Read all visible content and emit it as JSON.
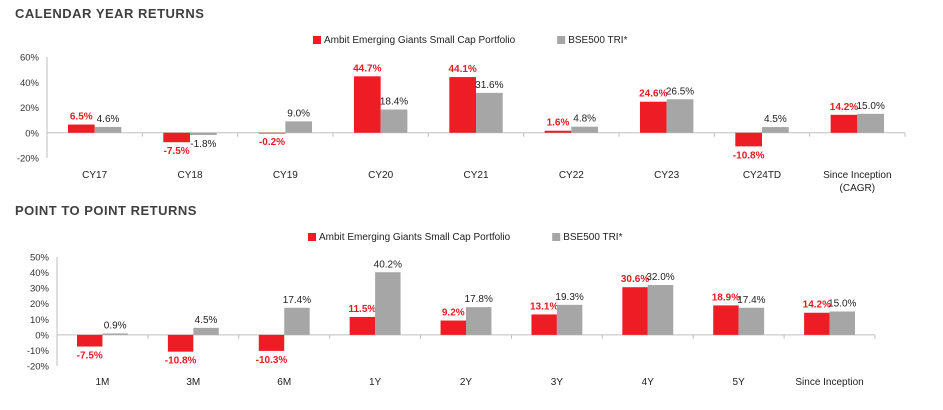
{
  "colors": {
    "portfolio": "#ee1c25",
    "benchmark": "#a6a6a6",
    "axis": "#bfbfbf"
  },
  "chart_data": [
    {
      "type": "bar",
      "title": "CALENDAR YEAR RETURNS",
      "legend": [
        "Ambit Emerging Giants Small Cap Portfolio",
        "BSE500 TRI*"
      ],
      "legend_position": "top-center",
      "categories": [
        "CY17",
        "CY18",
        "CY19",
        "CY20",
        "CY21",
        "CY22",
        "CY23",
        "CY24TD",
        "Since Inception (CAGR)"
      ],
      "series": [
        {
          "name": "Ambit Emerging Giants Small Cap Portfolio",
          "values": [
            6.5,
            -7.5,
            -0.2,
            44.7,
            44.1,
            1.6,
            24.6,
            -10.8,
            14.2
          ],
          "labels": [
            "6.5%",
            "-7.5%",
            "-0.2%",
            "44.7%",
            "44.1%",
            "1.6%",
            "24.6%",
            "-10.8%",
            "14.2%"
          ]
        },
        {
          "name": "BSE500 TRI*",
          "values": [
            4.6,
            -1.8,
            9.0,
            18.4,
            31.6,
            4.8,
            26.5,
            4.5,
            15.0
          ],
          "labels": [
            "4.6%",
            "-1.8%",
            "9.0%",
            "18.4%",
            "31.6%",
            "4.8%",
            "26.5%",
            "4.5%",
            "15.0%"
          ]
        }
      ],
      "yticks": [
        60,
        40,
        20,
        0,
        -20
      ],
      "ytick_labels": [
        "60%",
        "40%",
        "20%",
        "0%",
        "-20%"
      ],
      "ylim": [
        -20,
        60
      ],
      "xlabel": "",
      "ylabel": ""
    },
    {
      "type": "bar",
      "title": "POINT  TO POINT RETURNS",
      "legend": [
        "Ambit Emerging Giants Small Cap Portfolio",
        "BSE500 TRI*"
      ],
      "legend_position": "top-center",
      "categories": [
        "1M",
        "3M",
        "6M",
        "1Y",
        "2Y",
        "3Y",
        "4Y",
        "5Y",
        "Since Inception"
      ],
      "series": [
        {
          "name": "Ambit Emerging Giants Small Cap Portfolio",
          "values": [
            -7.5,
            -10.8,
            -10.3,
            11.5,
            9.2,
            13.1,
            30.6,
            18.9,
            14.2
          ],
          "labels": [
            "-7.5%",
            "-10.8%",
            "-10.3%",
            "11.5%",
            "9.2%",
            "13.1%",
            "30.6%",
            "18.9%",
            "14.2%"
          ]
        },
        {
          "name": "BSE500 TRI*",
          "values": [
            0.9,
            4.5,
            17.4,
            40.2,
            17.8,
            19.3,
            32.0,
            17.4,
            15.0
          ],
          "labels": [
            "0.9%",
            "4.5%",
            "17.4%",
            "40.2%",
            "17.8%",
            "19.3%",
            "32.0%",
            "17.4%",
            "15.0%"
          ]
        }
      ],
      "yticks": [
        50,
        40,
        30,
        20,
        10,
        0,
        -10,
        -20
      ],
      "ytick_labels": [
        "50%",
        "40%",
        "30%",
        "20%",
        "10%",
        "0%",
        "-10%",
        "-20%"
      ],
      "ylim": [
        -20,
        50
      ],
      "xlabel": "",
      "ylabel": ""
    }
  ]
}
